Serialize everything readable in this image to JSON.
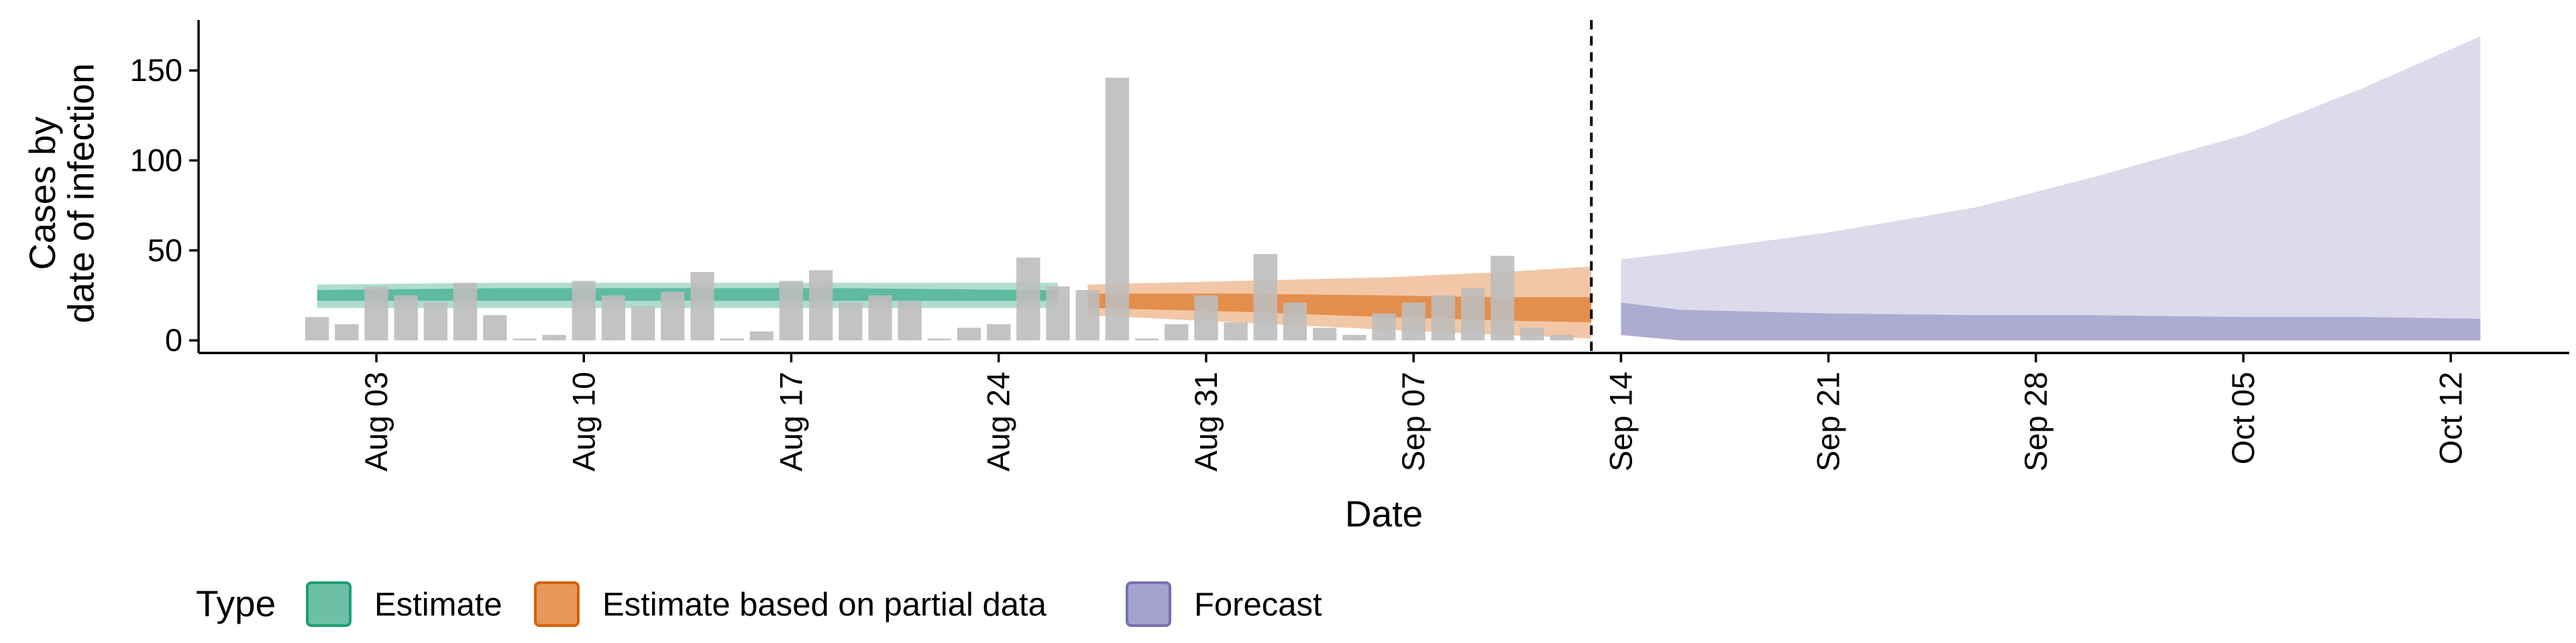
{
  "chart_data": {
    "type": "bar",
    "title": "",
    "xlabel": "Date",
    "ylabel_lines": [
      "Cases by",
      "date of infection"
    ],
    "ylim": [
      -7,
      178
    ],
    "x_range": [
      "2022-07-28",
      "2022-10-16"
    ],
    "y_ticks": [
      0,
      50,
      100,
      150
    ],
    "x_ticks": [
      {
        "date": "2022-08-03",
        "label": "Aug 03"
      },
      {
        "date": "2022-08-10",
        "label": "Aug 10"
      },
      {
        "date": "2022-08-17",
        "label": "Aug 17"
      },
      {
        "date": "2022-08-24",
        "label": "Aug 24"
      },
      {
        "date": "2022-08-31",
        "label": "Aug 31"
      },
      {
        "date": "2022-09-07",
        "label": "Sep 07"
      },
      {
        "date": "2022-09-14",
        "label": "Sep 14"
      },
      {
        "date": "2022-09-21",
        "label": "Sep 21"
      },
      {
        "date": "2022-09-28",
        "label": "Sep 28"
      },
      {
        "date": "2022-10-05",
        "label": "Oct 05"
      },
      {
        "date": "2022-10-12",
        "label": "Oct 12"
      }
    ],
    "observed_cases": {
      "start_date": "2022-08-01",
      "values": [
        13,
        9,
        30,
        25,
        21,
        32,
        14,
        1,
        3,
        33,
        25,
        19,
        27,
        38,
        1,
        5,
        33,
        39,
        21,
        25,
        22,
        1,
        7,
        9,
        46,
        30,
        28,
        146,
        1,
        9,
        25,
        10,
        48,
        21,
        7,
        3,
        15,
        21,
        25,
        29,
        47,
        7,
        3
      ],
      "color": "#bdbdbd"
    },
    "vline_date": "2022-09-13",
    "bands": [
      {
        "type": "Estimate",
        "color": "#1b9e77",
        "x": [
          "2022-08-01",
          "2022-08-07",
          "2022-08-13",
          "2022-08-19",
          "2022-08-25",
          "2022-08-26"
        ],
        "outer_upper": [
          31,
          32,
          32,
          32,
          32,
          32
        ],
        "outer_lower": [
          18,
          18,
          18,
          18,
          18,
          18
        ],
        "inner_upper": [
          28,
          29,
          29,
          29,
          28,
          28
        ],
        "inner_lower": [
          22,
          22,
          22,
          22,
          22,
          22
        ]
      },
      {
        "type": "Estimate based on partial data",
        "color": "#d95f02",
        "x": [
          "2022-08-27",
          "2022-09-01",
          "2022-09-06",
          "2022-09-10",
          "2022-09-13"
        ],
        "outer_upper": [
          31,
          33,
          35,
          38,
          41
        ],
        "outer_lower": [
          14,
          10,
          6,
          3,
          1
        ],
        "inner_upper": [
          26,
          26,
          25,
          24,
          24
        ],
        "inner_lower": [
          18,
          16,
          13,
          11,
          10
        ]
      },
      {
        "type": "Forecast",
        "color": "#7570b3",
        "x": [
          "2022-09-14",
          "2022-09-16",
          "2022-09-21",
          "2022-09-26",
          "2022-09-30",
          "2022-10-05",
          "2022-10-09",
          "2022-10-13"
        ],
        "outer_upper": [
          45,
          49,
          60,
          74,
          91,
          114,
          140,
          169
        ],
        "outer_lower": [
          3,
          0,
          0,
          0,
          0,
          0,
          0,
          0
        ],
        "inner_upper": [
          21,
          17,
          15,
          14,
          14,
          13,
          13,
          12
        ],
        "inner_lower": [
          3,
          0,
          0,
          0,
          0,
          0,
          0,
          0
        ]
      }
    ],
    "legend": {
      "title": "Type",
      "position": "bottom",
      "entries": [
        {
          "label": "Estimate",
          "color": "#1b9e77"
        },
        {
          "label": "Estimate based on partial data",
          "color": "#d95f02"
        },
        {
          "label": "Forecast",
          "color": "#7570b3"
        }
      ]
    },
    "grid": false
  }
}
